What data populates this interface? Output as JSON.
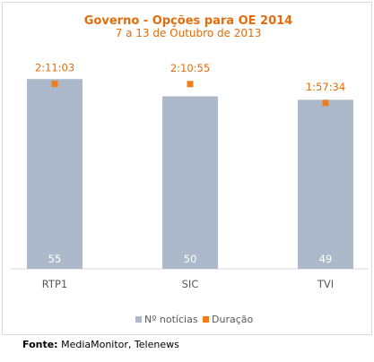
{
  "chart_data": {
    "type": "bar",
    "title": "Governo - Opções para OE 2014",
    "subtitle": "7 a 13 de Outubro de 2013",
    "categories": [
      "RTP1",
      "SIC",
      "TVI"
    ],
    "series": [
      {
        "name": "Nº notícias",
        "values": [
          55,
          50,
          49
        ],
        "color": "#acb9ca"
      },
      {
        "name": "Duração",
        "values": [
          "2:11:03",
          "2:10:55",
          "1:57:34"
        ],
        "seconds": [
          7863,
          7855,
          7054
        ],
        "color": "#f07d1c"
      }
    ],
    "ylim": [
      0,
      60
    ],
    "duration_ylim_seconds": [
      0,
      8800
    ],
    "grid": false,
    "legend_position": "bottom"
  },
  "source": {
    "label": "Fonte:",
    "text": " MediaMonitor, Telenews"
  }
}
